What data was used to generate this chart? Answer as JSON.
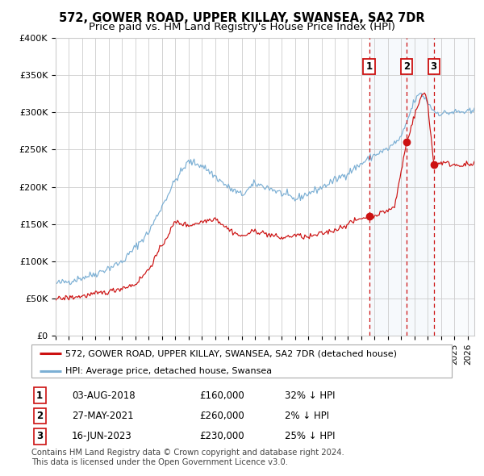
{
  "title": "572, GOWER ROAD, UPPER KILLAY, SWANSEA, SA2 7DR",
  "subtitle": "Price paid vs. HM Land Registry's House Price Index (HPI)",
  "ylim": [
    0,
    400000
  ],
  "yticks": [
    0,
    50000,
    100000,
    150000,
    200000,
    250000,
    300000,
    350000,
    400000
  ],
  "ytick_labels": [
    "£0",
    "£50K",
    "£100K",
    "£150K",
    "£200K",
    "£250K",
    "£300K",
    "£350K",
    "£400K"
  ],
  "xlim_start": 1995.0,
  "xlim_end": 2026.5,
  "hpi_color": "#7bafd4",
  "price_color": "#cc1111",
  "vline_color": "#cc1111",
  "vline3_color": "#cc1111",
  "shade_color": "#dce8f5",
  "hatch_color": "#cccccc",
  "legend_label_red": "572, GOWER ROAD, UPPER KILLAY, SWANSEA, SA2 7DR (detached house)",
  "legend_label_blue": "HPI: Average price, detached house, Swansea",
  "transactions": [
    {
      "num": 1,
      "date": "03-AUG-2018",
      "price": 160000,
      "hpi_diff": "32%",
      "year": 2018.58
    },
    {
      "num": 2,
      "date": "27-MAY-2021",
      "price": 260000,
      "hpi_diff": "2%",
      "year": 2021.4
    },
    {
      "num": 3,
      "date": "16-JUN-2023",
      "price": 230000,
      "hpi_diff": "25%",
      "year": 2023.45
    }
  ],
  "footer1": "Contains HM Land Registry data © Crown copyright and database right 2024.",
  "footer2": "This data is licensed under the Open Government Licence v3.0."
}
